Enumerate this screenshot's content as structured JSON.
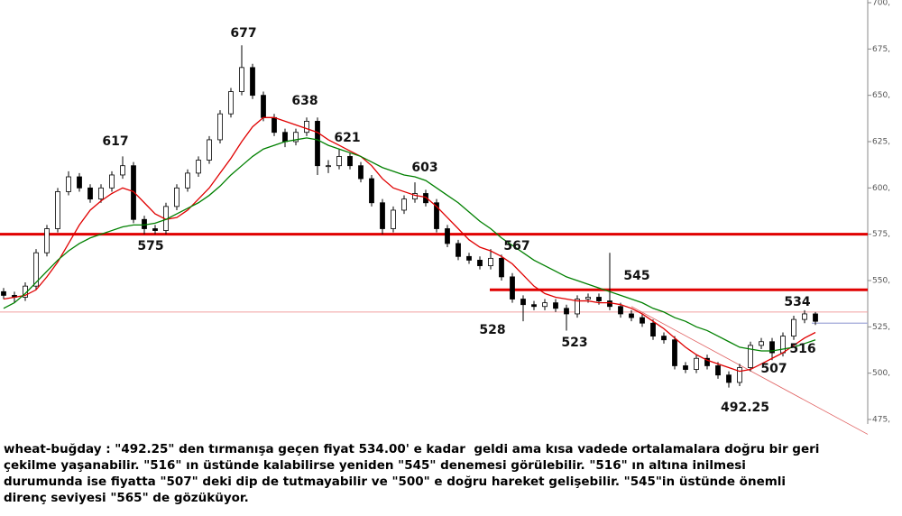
{
  "chart_data": {
    "type": "candlestick",
    "open": [
      544,
      542,
      541,
      547,
      565,
      578,
      598,
      606,
      600,
      594,
      600,
      607,
      612,
      583,
      578,
      577,
      590,
      600,
      608,
      615,
      626,
      640,
      652,
      665,
      650,
      638,
      630,
      625,
      630,
      636,
      612,
      612,
      617,
      612,
      605,
      592,
      578,
      588,
      594,
      597,
      592,
      578,
      570,
      563,
      561,
      558,
      562,
      552,
      540,
      537,
      536,
      538,
      535,
      532,
      540,
      541,
      539,
      536,
      532,
      530,
      527,
      520,
      518,
      504,
      502,
      508,
      504,
      499,
      495,
      503,
      515,
      517,
      511,
      520,
      529,
      532
    ],
    "high": [
      546,
      544,
      549,
      567,
      580,
      600,
      609,
      608,
      602,
      602,
      609,
      617,
      614,
      585,
      580,
      592,
      602,
      610,
      617,
      628,
      642,
      654,
      677,
      667,
      652,
      640,
      632,
      632,
      638,
      638,
      615,
      621,
      619,
      614,
      607,
      594,
      590,
      596,
      603,
      599,
      594,
      580,
      572,
      565,
      563,
      567,
      564,
      554,
      542,
      539,
      540,
      540,
      537,
      542,
      543,
      543,
      565,
      538,
      534,
      532,
      529,
      522,
      520,
      506,
      510,
      510,
      506,
      501,
      505,
      517,
      519,
      519,
      522,
      531,
      534,
      533
    ],
    "low": [
      540,
      538,
      539,
      545,
      563,
      576,
      596,
      598,
      592,
      592,
      598,
      605,
      581,
      575,
      575,
      575,
      588,
      598,
      606,
      613,
      624,
      638,
      650,
      648,
      636,
      628,
      622,
      623,
      628,
      607,
      608,
      610,
      610,
      603,
      590,
      575,
      576,
      586,
      592,
      590,
      576,
      568,
      561,
      559,
      556,
      556,
      550,
      538,
      528,
      534,
      534,
      533,
      523,
      530,
      538,
      537,
      534,
      530,
      528,
      525,
      518,
      516,
      502,
      500,
      500,
      502,
      497,
      492.25,
      493,
      501,
      513,
      507,
      509,
      518,
      527,
      526
    ],
    "close": [
      542,
      541,
      547,
      565,
      578,
      598,
      606,
      600,
      594,
      600,
      607,
      612,
      583,
      578,
      577,
      590,
      600,
      608,
      615,
      626,
      640,
      652,
      665,
      650,
      638,
      630,
      625,
      630,
      636,
      612,
      612,
      617,
      612,
      605,
      592,
      578,
      588,
      594,
      597,
      592,
      578,
      570,
      563,
      561,
      558,
      562,
      552,
      540,
      537,
      536,
      538,
      535,
      532,
      540,
      541,
      539,
      536,
      532,
      530,
      527,
      520,
      518,
      504,
      502,
      508,
      504,
      499,
      495,
      503,
      515,
      517,
      511,
      520,
      529,
      532,
      528
    ],
    "series": [
      {
        "color": "#e00000",
        "values": [
          540,
          541,
          542,
          545,
          552,
          560,
          570,
          580,
          588,
          593,
          597,
          600,
          598,
          592,
          586,
          583,
          584,
          588,
          594,
          600,
          608,
          616,
          625,
          633,
          638,
          638,
          636,
          634,
          632,
          630,
          626,
          623,
          620,
          617,
          612,
          605,
          600,
          598,
          596,
          595,
          590,
          584,
          578,
          572,
          568,
          566,
          563,
          559,
          553,
          547,
          543,
          541,
          540,
          539,
          539,
          538,
          538,
          537,
          535,
          532,
          528,
          524,
          519,
          514,
          510,
          507,
          505,
          503,
          501,
          502,
          505,
          508,
          511,
          515,
          519,
          522
        ]
      },
      {
        "color": "#008000",
        "values": [
          535,
          538,
          543,
          549,
          555,
          561,
          566,
          570,
          573,
          575,
          577,
          579,
          580,
          580,
          581,
          583,
          586,
          589,
          592,
          596,
          601,
          607,
          612,
          617,
          621,
          623,
          625,
          626,
          627,
          626,
          623,
          621,
          619,
          617,
          614,
          611,
          609,
          607,
          606,
          604,
          600,
          596,
          592,
          587,
          582,
          578,
          573,
          569,
          565,
          561,
          558,
          555,
          552,
          550,
          548,
          546,
          544,
          542,
          540,
          538,
          535,
          533,
          530,
          528,
          525,
          523,
          520,
          517,
          514,
          513,
          512,
          512,
          513,
          514,
          516,
          518
        ]
      }
    ],
    "levels": [
      {
        "value": 575,
        "color": "#e00000"
      },
      {
        "value": 545,
        "color": "#e00000"
      },
      {
        "value": 533,
        "color": "#f0a0a0"
      },
      {
        "value": 527,
        "color": "#a0a8d8"
      }
    ],
    "trendline": {
      "color": "#e06060",
      "values": [
        536,
        467
      ]
    },
    "annotations": [
      "677",
      "617",
      "575",
      "638",
      "621",
      "603",
      "567",
      "545",
      "528",
      "523",
      "534",
      "516",
      "507",
      "492.25"
    ],
    "ylim": [
      475,
      700
    ],
    "yticks": [
      {
        "value": 475,
        "label": "475,"
      },
      {
        "value": 500,
        "label": "500,"
      },
      {
        "value": 525,
        "label": "525,"
      },
      {
        "value": 550,
        "label": "550,"
      },
      {
        "value": 575,
        "label": "575,"
      },
      {
        "value": 600,
        "label": "600,"
      },
      {
        "value": 625,
        "label": "625,"
      },
      {
        "value": 650,
        "label": "650,"
      },
      {
        "value": 675,
        "label": "675,"
      },
      {
        "value": 700,
        "label": "700,"
      }
    ],
    "text": [
      "wheat-buğday : \"492.25\" den tırmanışa geçen fiyat 534.00' e kadar  geldi ama kısa vadede ortalamalara doğru bir geri",
      "çekilme yaşanabilir. \"516\" ın üstünde kalabilirse yeniden \"545\" denemesi görülebilir. \"516\" ın altına inilmesi",
      "durumunda ise fiyatta \"507\" deki dip de tutmayabilir ve \"500\" e doğru hareket gelişebilir. \"545\"in üstünde önemli",
      "direnç seviyesi \"565\" de gözüküyor."
    ]
  }
}
